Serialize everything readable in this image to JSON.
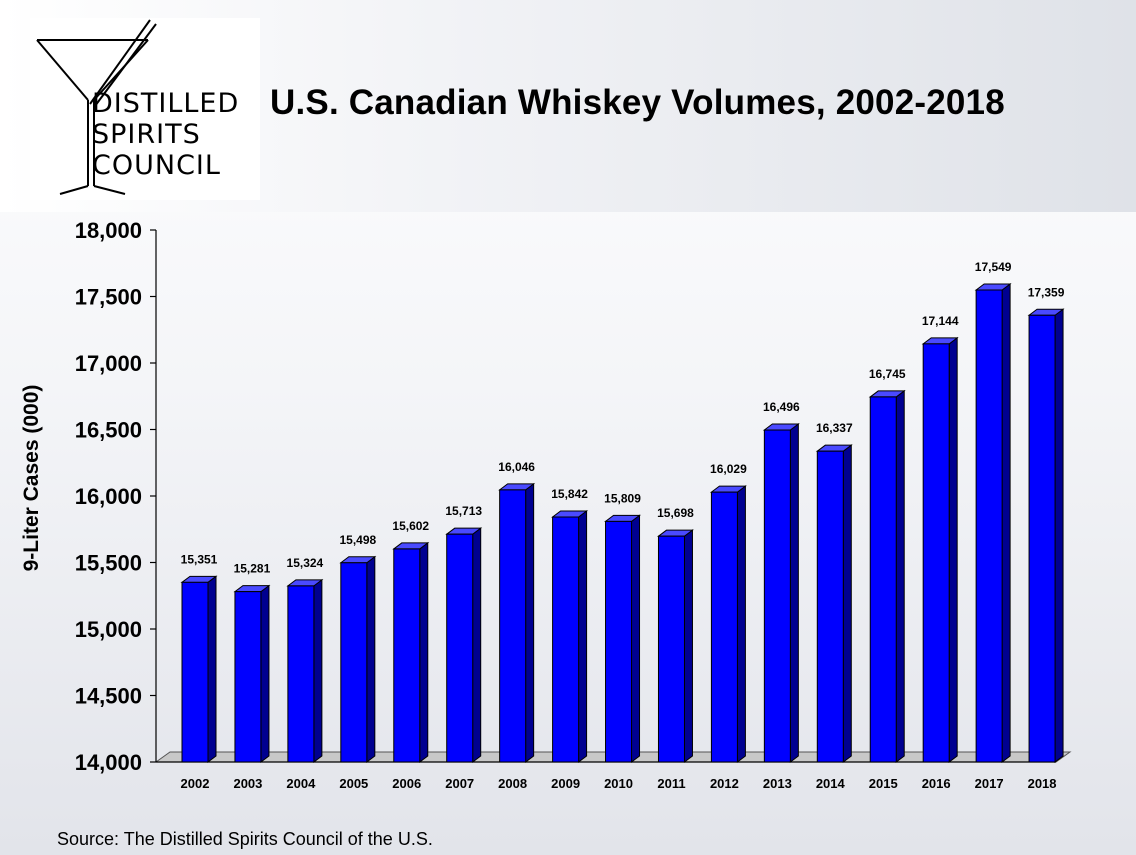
{
  "logo": {
    "lines": [
      "DISTILLED",
      "SPIRITS",
      "COUNCIL"
    ]
  },
  "title": "U.S. Canadian Whiskey Volumes, 2002-2018",
  "source": "Source:  The Distilled Spirits Council of the U.S.",
  "chart_data": {
    "type": "bar",
    "title": "U.S. Canadian Whiskey Volumes, 2002-2018",
    "xlabel": "",
    "ylabel": "9-Liter Cases (000)",
    "ylim": [
      14000,
      18000
    ],
    "yticks": [
      "18,000",
      "17,500",
      "17,000",
      "16,500",
      "16,000",
      "15,500",
      "15,000",
      "14,500",
      "14,000"
    ],
    "categories": [
      "2002",
      "2003",
      "2004",
      "2005",
      "2006",
      "2007",
      "2008",
      "2009",
      "2010",
      "2011",
      "2012",
      "2013",
      "2014",
      "2015",
      "2016",
      "2017",
      "2018"
    ],
    "values": [
      15351,
      15281,
      15324,
      15498,
      15602,
      15713,
      16046,
      15842,
      15809,
      15698,
      16029,
      16496,
      16337,
      16745,
      17144,
      17549,
      17359
    ],
    "labels": [
      "15,351",
      "15,281",
      "15,324",
      "15,498",
      "15,602",
      "15,713",
      "16,046",
      "15,842",
      "15,809",
      "15,698",
      "16,029",
      "16,496",
      "16,337",
      "16,745",
      "17,144",
      "17,549",
      "17,359"
    ],
    "bar_color": "#0000ff",
    "grid": false,
    "legend": "none"
  }
}
